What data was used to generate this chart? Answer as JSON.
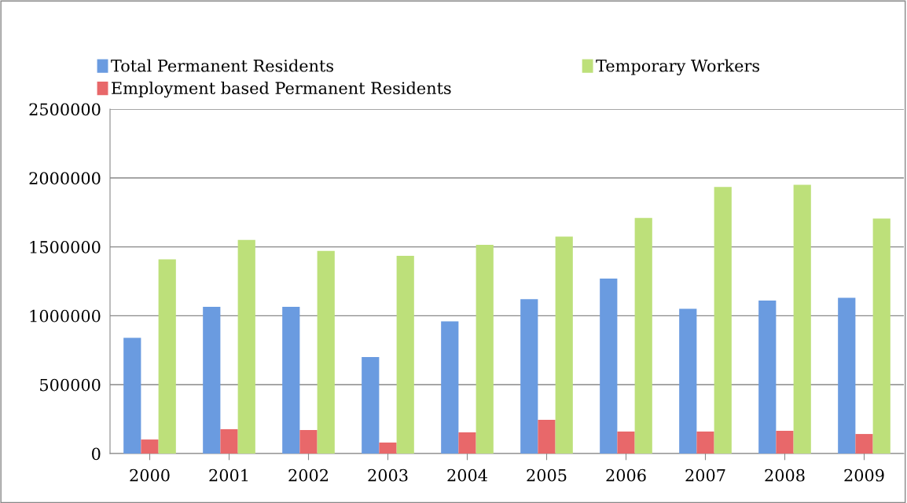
{
  "chart_data": {
    "type": "bar",
    "categories": [
      "2000",
      "2001",
      "2002",
      "2003",
      "2004",
      "2005",
      "2006",
      "2007",
      "2008",
      "2009"
    ],
    "series": [
      {
        "name": "Total Permanent Residents",
        "color": "#6a9be0",
        "values": [
          840000,
          1065000,
          1065000,
          700000,
          960000,
          1120000,
          1270000,
          1050000,
          1110000,
          1130000
        ]
      },
      {
        "name": "Employment based Permanent Residents",
        "color": "#e8686a",
        "values": [
          102000,
          177000,
          171000,
          80000,
          154000,
          245000,
          160000,
          160000,
          165000,
          142000
        ]
      },
      {
        "name": "Temporary Workers",
        "color": "#bde07a",
        "values": [
          1410000,
          1550000,
          1470000,
          1435000,
          1515000,
          1575000,
          1710000,
          1935000,
          1950000,
          1705000
        ]
      }
    ],
    "ylim": [
      0,
      2500000
    ],
    "yticks": [
      0,
      500000,
      1000000,
      1500000,
      2000000,
      2500000
    ],
    "grid": "y",
    "legend": "top"
  }
}
